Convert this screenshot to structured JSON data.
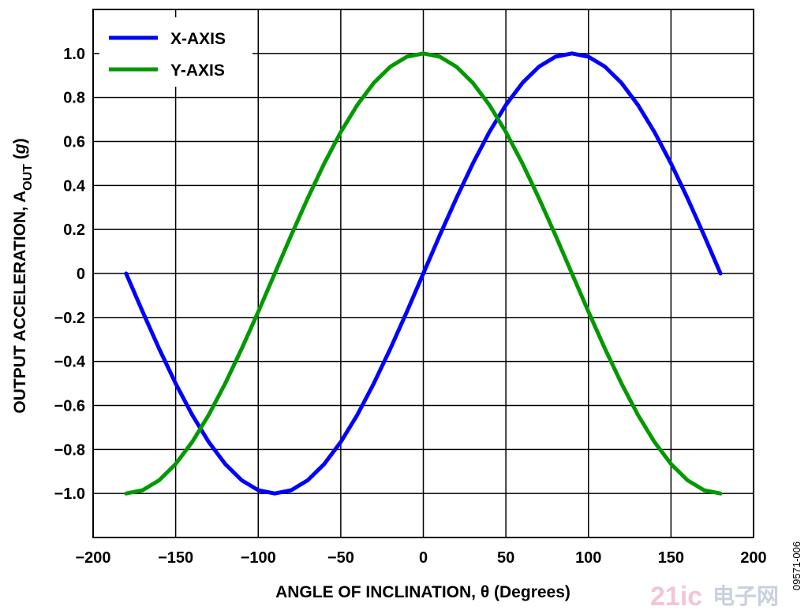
{
  "chart_data": {
    "type": "line",
    "xlabel_main": "ANGLE OF INCLINATION, θ (Degrees)",
    "ylabel": {
      "pre": "OUTPUT ACCELERATION, A",
      "sub": "OUT",
      "mid": " (",
      "italic": "g",
      "post": ")"
    },
    "xlim": [
      -200,
      200
    ],
    "ylim": [
      -1.2,
      1.2
    ],
    "x_ticks": [
      -200,
      -150,
      -100,
      -50,
      0,
      50,
      100,
      150,
      200
    ],
    "x_tick_labels": [
      "−200",
      "−150",
      "−100",
      "−50",
      "0",
      "50",
      "100",
      "150",
      "200"
    ],
    "y_ticks": [
      1.0,
      0.8,
      0.6,
      0.4,
      0.2,
      0,
      -0.2,
      -0.4,
      -0.6,
      -0.8,
      -1.0
    ],
    "y_tick_labels": [
      "1.0",
      "0.8",
      "0.6",
      "0.4",
      "0.2",
      "0",
      "−0.2",
      "−0.4",
      "−0.6",
      "−0.8",
      "−1.0"
    ],
    "grid": true,
    "legend_position": "top-left",
    "x": [
      -180,
      -170,
      -160,
      -150,
      -140,
      -130,
      -120,
      -110,
      -100,
      -90,
      -80,
      -70,
      -60,
      -50,
      -40,
      -30,
      -20,
      -10,
      0,
      10,
      20,
      30,
      40,
      50,
      60,
      70,
      80,
      90,
      100,
      110,
      120,
      130,
      140,
      150,
      160,
      170,
      180
    ],
    "series": [
      {
        "name": "X-AXIS",
        "color": "#0000ff",
        "values": [
          0,
          -0.174,
          -0.342,
          -0.5,
          -0.643,
          -0.766,
          -0.866,
          -0.94,
          -0.985,
          -1.0,
          -0.985,
          -0.94,
          -0.866,
          -0.766,
          -0.643,
          -0.5,
          -0.342,
          -0.174,
          0,
          0.174,
          0.342,
          0.5,
          0.643,
          0.766,
          0.866,
          0.94,
          0.985,
          1.0,
          0.985,
          0.94,
          0.866,
          0.766,
          0.643,
          0.5,
          0.342,
          0.174,
          0
        ]
      },
      {
        "name": "Y-AXIS",
        "color": "#009a00",
        "values": [
          -1.0,
          -0.985,
          -0.94,
          -0.866,
          -0.766,
          -0.643,
          -0.5,
          -0.342,
          -0.174,
          0,
          0.174,
          0.342,
          0.5,
          0.643,
          0.766,
          0.866,
          0.94,
          0.985,
          1.0,
          0.985,
          0.94,
          0.866,
          0.766,
          0.643,
          0.5,
          0.342,
          0.174,
          0,
          -0.174,
          -0.342,
          -0.5,
          -0.643,
          -0.766,
          -0.866,
          -0.94,
          -0.985,
          -1.0
        ]
      }
    ]
  },
  "figure_id": "09571-006",
  "watermark": {
    "number": "21ic",
    "text": "电子网"
  }
}
